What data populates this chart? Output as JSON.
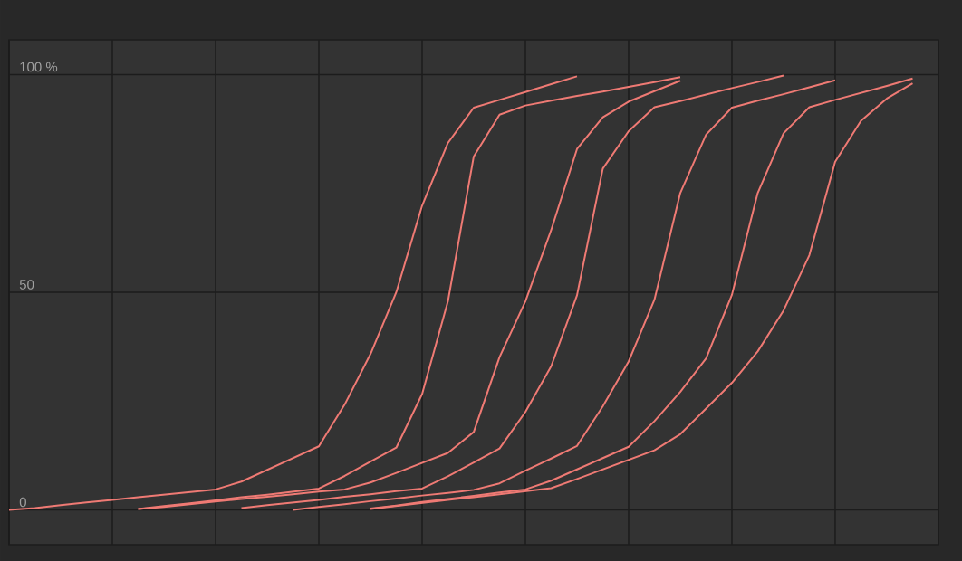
{
  "chart_data": {
    "type": "line",
    "color": "#ef7a74",
    "grid": true,
    "marker": "none",
    "line_style": "solid",
    "tick_labels": "y",
    "categories": [
      null,
      null,
      null,
      null,
      null,
      null,
      null,
      null,
      null,
      null,
      null,
      null,
      null,
      null,
      null,
      null,
      null,
      null,
      null,
      null,
      null,
      null,
      null,
      null,
      null,
      null,
      null,
      null,
      null,
      null,
      null,
      null,
      null,
      null,
      null,
      null,
      null
    ],
    "ylim": [
      -8,
      108
    ],
    "yticks": [
      0,
      50,
      {
        "value": 100,
        "label": "100 %"
      }
    ],
    "series": [
      {
        "values": [
          0,
          0.4,
          1.1,
          1.7,
          2.3,
          2.9,
          3.5,
          4.1,
          4.7,
          6.5,
          9.2,
          11.9,
          14.6,
          24.2,
          35.8,
          50,
          69.9,
          84.3,
          92.4,
          94.2,
          96.0,
          97.8,
          99.6,
          null,
          null,
          null,
          null,
          null,
          null,
          null,
          null,
          null,
          null,
          null,
          null,
          null,
          null
        ]
      },
      {
        "values": [
          null,
          null,
          null,
          null,
          null,
          0.2,
          0.9,
          1.5,
          2.2,
          2.9,
          3.5,
          4.2,
          4.9,
          7.8,
          11.1,
          14.3,
          26.6,
          47.9,
          81.2,
          90.8,
          92.9,
          94.0,
          95.1,
          96.1,
          97.2,
          98.3,
          99.4,
          null,
          null,
          null,
          null,
          null,
          null,
          null,
          null,
          null,
          null
        ]
      },
      {
        "values": [
          null,
          null,
          null,
          null,
          null,
          0.2,
          0.7,
          1.3,
          1.9,
          2.5,
          3.0,
          3.6,
          4.2,
          4.7,
          6.3,
          8.5,
          10.8,
          13.1,
          17.9,
          35.1,
          47.9,
          64.3,
          82.9,
          90.2,
          93.8,
          96.2,
          98.6,
          null,
          null,
          null,
          null,
          null,
          null,
          null,
          null,
          null,
          null
        ]
      },
      {
        "values": [
          null,
          null,
          null,
          null,
          null,
          null,
          null,
          null,
          null,
          0.4,
          1.1,
          1.7,
          2.3,
          3.0,
          3.6,
          4.3,
          4.9,
          7.7,
          10.9,
          14.1,
          22.5,
          33,
          49.3,
          78.4,
          87.0,
          92.5,
          93.9,
          95.4,
          96.9,
          98.3,
          99.8,
          null,
          null,
          null,
          null,
          null,
          null
        ]
      },
      {
        "values": [
          null,
          null,
          null,
          null,
          null,
          null,
          null,
          null,
          null,
          null,
          null,
          0,
          0.7,
          1.3,
          2.0,
          2.6,
          3.3,
          3.9,
          4.6,
          6.1,
          9.0,
          11.8,
          14.7,
          23.8,
          34.1,
          48.3,
          72.8,
          86.2,
          92.4,
          94.0,
          95.5,
          97.1,
          98.7,
          null,
          null,
          null,
          null
        ]
      },
      {
        "values": [
          null,
          null,
          null,
          null,
          null,
          null,
          null,
          null,
          null,
          null,
          null,
          null,
          null,
          null,
          0.3,
          1.0,
          1.8,
          2.5,
          3.2,
          4.0,
          4.7,
          6.7,
          9.3,
          11.9,
          14.5,
          20.4,
          27.1,
          34.8,
          49.4,
          72.8,
          86.5,
          92.5,
          94.2,
          95.8,
          97.4,
          99.1,
          null
        ]
      },
      {
        "values": [
          null,
          null,
          null,
          null,
          null,
          null,
          null,
          null,
          null,
          null,
          null,
          null,
          null,
          null,
          0.2,
          0.9,
          1.6,
          2.3,
          2.9,
          3.6,
          4.3,
          5.0,
          7.1,
          9.3,
          11.5,
          13.7,
          17.4,
          23.3,
          29.2,
          36.4,
          45.8,
          58.5,
          80,
          89.4,
          94.5,
          98.0,
          null
        ]
      }
    ]
  }
}
